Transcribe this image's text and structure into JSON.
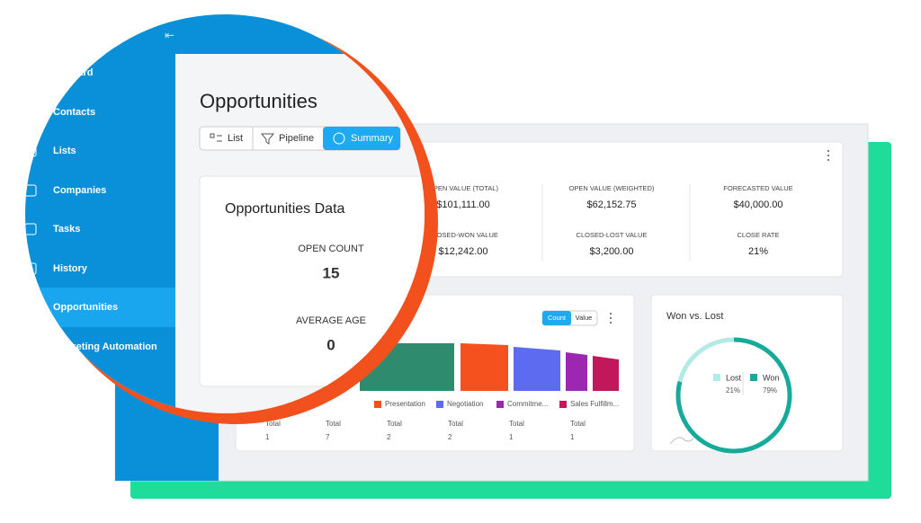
{
  "sidebar": {
    "items": [
      "Dashboard",
      "Contacts",
      "Lists",
      "Companies",
      "Tasks",
      "History",
      "Opportunities",
      "Marketing Automation"
    ]
  },
  "page": {
    "title": "Opportunities",
    "tabs": [
      "List",
      "Pipeline",
      "Summary"
    ]
  },
  "data_card": {
    "title": "Opportunities Data",
    "stats": [
      {
        "label": "OPEN COUNT",
        "value": "15"
      },
      {
        "label": "AVERAGE AGE",
        "value": "0"
      }
    ]
  },
  "kpis": [
    {
      "label": "OPEN VALUE (TOTAL)",
      "value": "$101,111.00"
    },
    {
      "label": "OPEN VALUE (WEIGHTED)",
      "value": "$62,152.75"
    },
    {
      "label": "FORECASTED VALUE",
      "value": "$40,000.00"
    },
    {
      "label": "CLOSED-WON VALUE",
      "value": "$12,242.00"
    },
    {
      "label": "CLOSED-LOST VALUE",
      "value": "$3,200.00"
    },
    {
      "label": "CLOSE RATE",
      "value": "21%"
    }
  ],
  "funnel": {
    "toggle": [
      "Count",
      "Value"
    ],
    "legend": [
      {
        "name": "Presentation",
        "color": "#f4511e"
      },
      {
        "name": "Negotiation",
        "color": "#5c6bf0"
      },
      {
        "name": "Commitme...",
        "color": "#9c27b0"
      },
      {
        "name": "Sales Fulfillm...",
        "color": "#c2185b"
      }
    ],
    "columns": [
      {
        "label": "Total",
        "value": "1"
      },
      {
        "label": "Total",
        "value": "7"
      },
      {
        "label": "Total",
        "value": "2"
      },
      {
        "label": "Total",
        "value": "2"
      },
      {
        "label": "Total",
        "value": "1"
      },
      {
        "label": "Total",
        "value": "1"
      }
    ]
  },
  "won_lost": {
    "title": "Won vs. Lost",
    "series": [
      {
        "name": "Lost",
        "color": "#b2ebe5",
        "value": 21,
        "value_label": "21%"
      },
      {
        "name": "Won",
        "color": "#17a99a",
        "value": 79,
        "value_label": "79%"
      }
    ]
  }
}
